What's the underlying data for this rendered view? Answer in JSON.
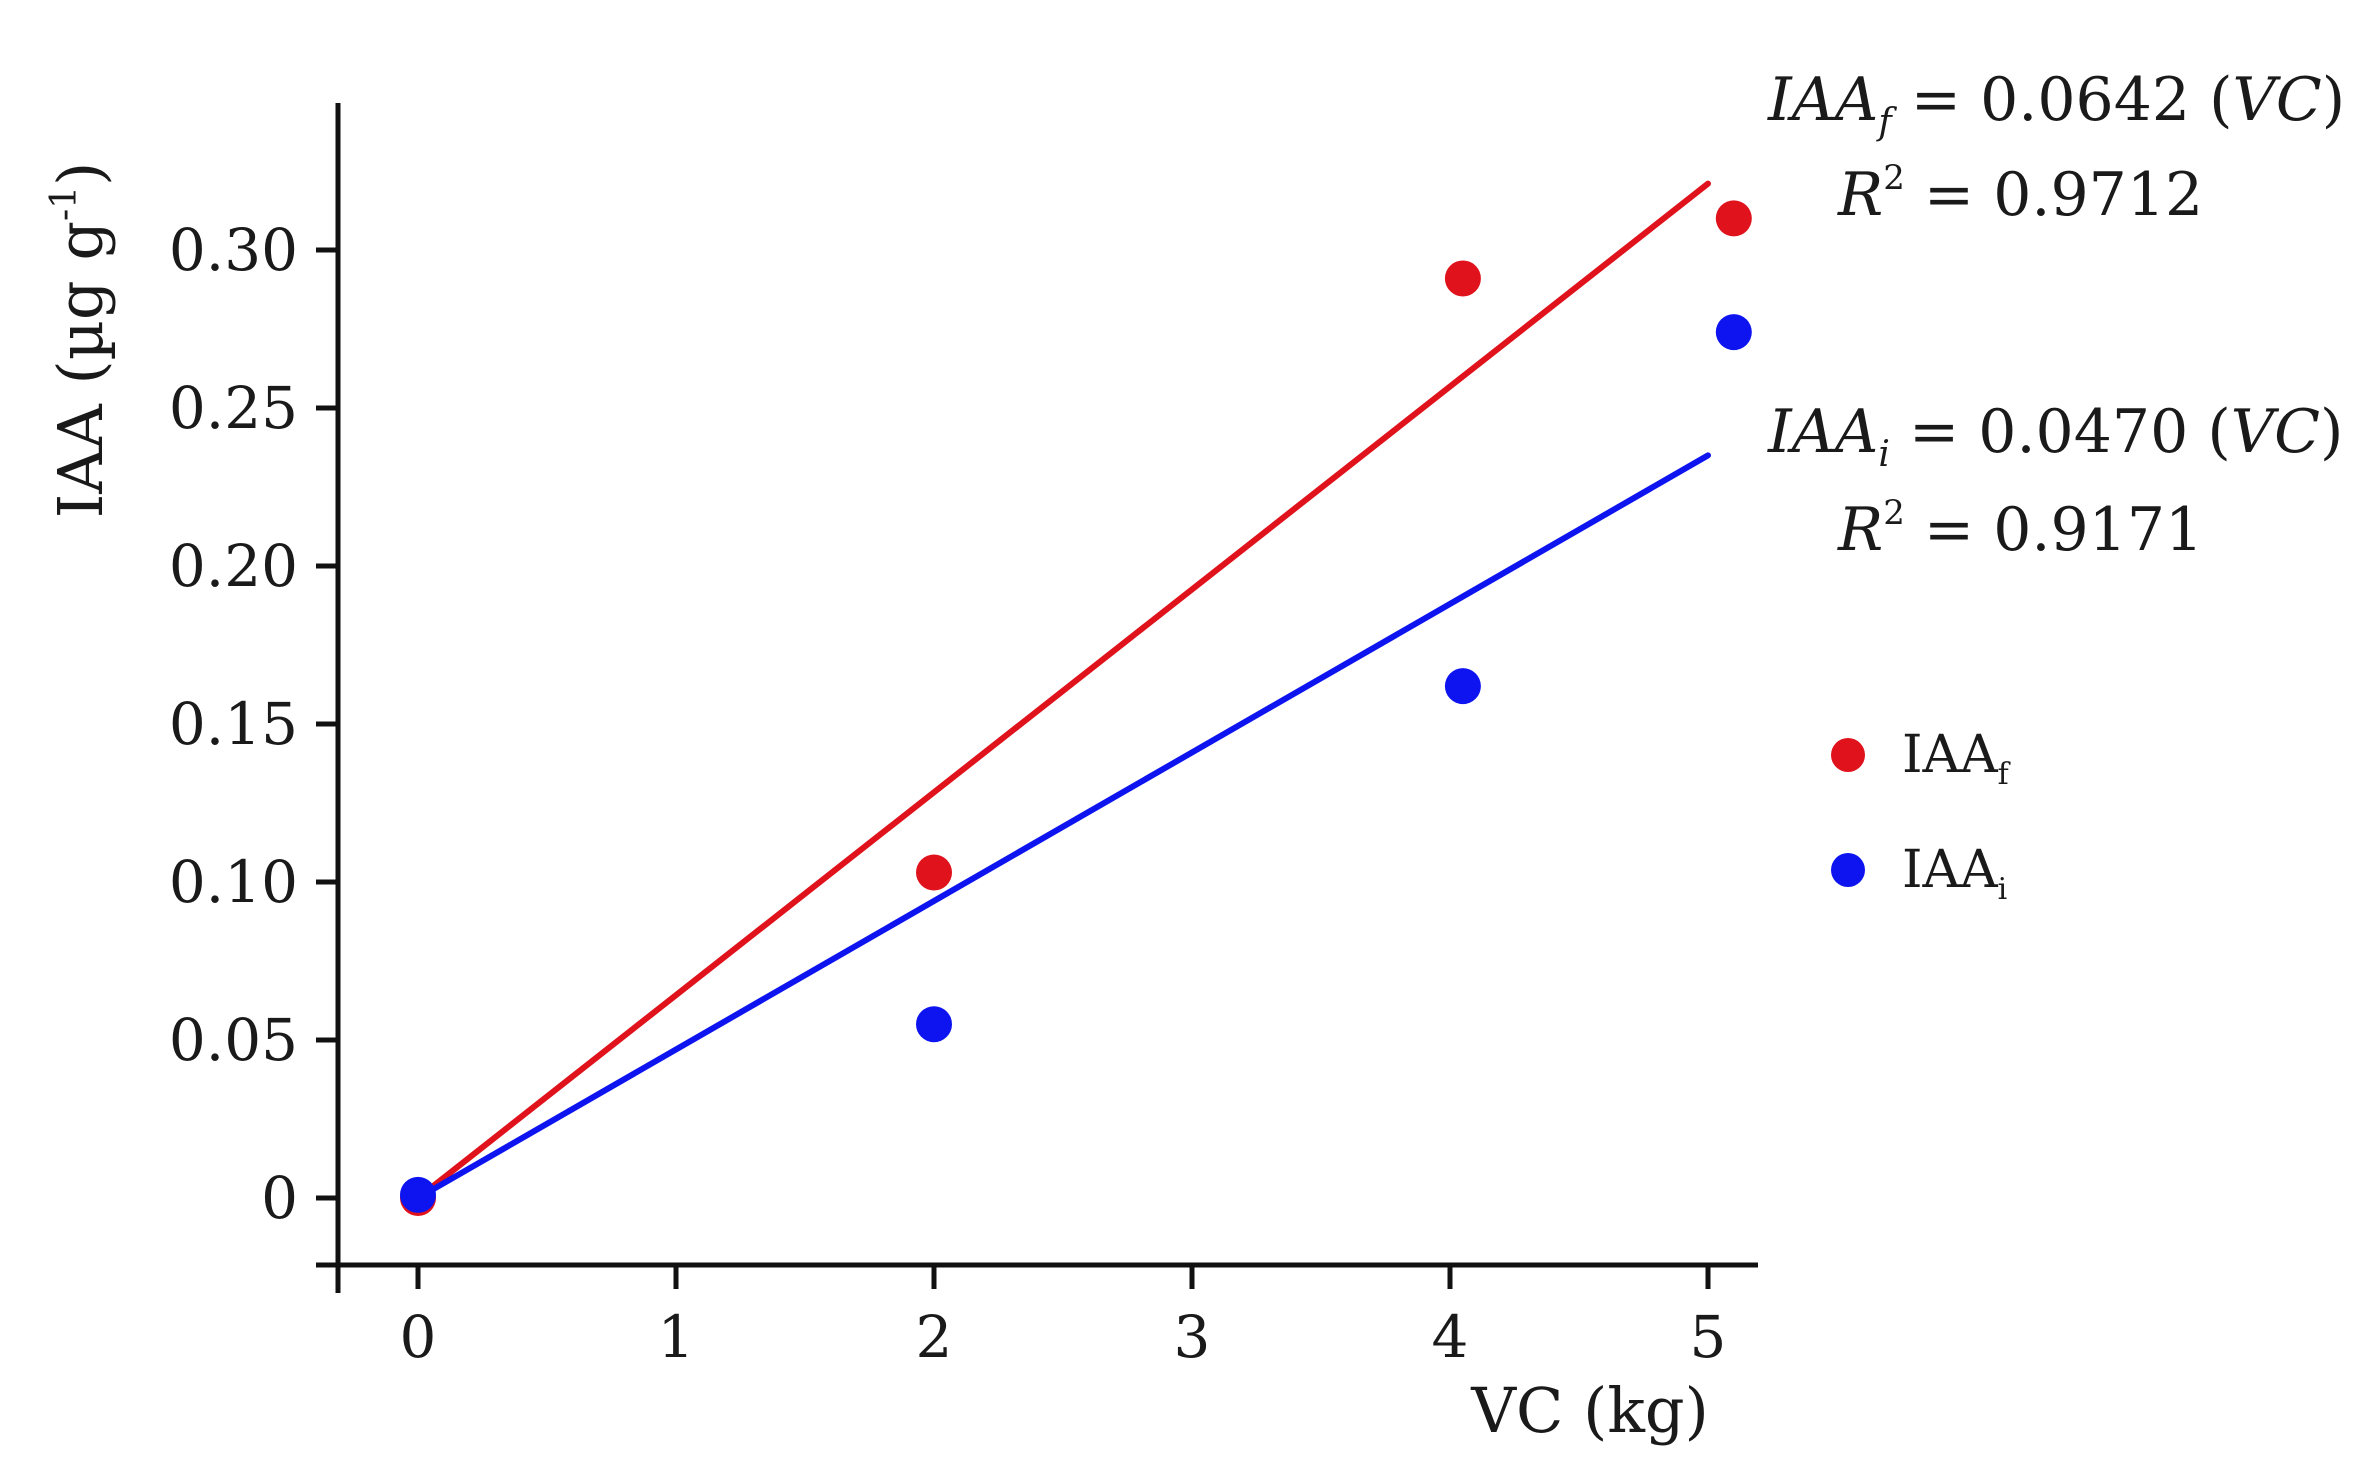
{
  "chart_data": {
    "type": "scatter",
    "xlabel": "VC (kg)",
    "ylabel": "IAA (µg g",
    "ylabel_sup": "-1",
    "ylabel_close": ")",
    "x_ticks": [
      0,
      1,
      2,
      3,
      4,
      5
    ],
    "x_tick_labels": [
      "0",
      "1",
      "2",
      "3",
      "4",
      "5"
    ],
    "y_ticks": [
      0,
      0.05,
      0.1,
      0.15,
      0.2,
      0.25,
      0.3
    ],
    "y_tick_labels": [
      "0",
      "0.05",
      "0.10",
      "0.15",
      "0.20",
      "0.25",
      "0.30"
    ],
    "xlim": [
      -0.3,
      5.2
    ],
    "ylim": [
      -0.02,
      0.35
    ],
    "grid": false,
    "legend_position": "right",
    "series": [
      {
        "key": "iaaf",
        "name": "IAA",
        "name_sub": "f",
        "color": "#e0121c",
        "points": [
          {
            "x": 0,
            "y": 0.0
          },
          {
            "x": 2,
            "y": 0.103
          },
          {
            "x": 4.05,
            "y": 0.291
          },
          {
            "x": 5.1,
            "y": 0.31
          }
        ],
        "fit": {
          "slope": 0.0642,
          "x_start": 0.05,
          "x_end": 5.0
        },
        "equation": {
          "lhs": "IAA",
          "lhs_sub": "f",
          "rhs": " = 0.0642 (",
          "var": "VC",
          "close": ")",
          "r2_label": "R",
          "r2_sup": "2",
          "r2_value": " = 0.9712"
        }
      },
      {
        "key": "iaai",
        "name": "IAA",
        "name_sub": "i",
        "color": "#0d14f0",
        "points": [
          {
            "x": 0,
            "y": 0.001
          },
          {
            "x": 2,
            "y": 0.055
          },
          {
            "x": 4.05,
            "y": 0.162
          },
          {
            "x": 5.1,
            "y": 0.274
          }
        ],
        "fit": {
          "slope": 0.047,
          "x_start": 0.05,
          "x_end": 5.0
        },
        "equation": {
          "lhs": "IAA",
          "lhs_sub": "i",
          "rhs": " = 0.0470 (",
          "var": "VC",
          "close": ")",
          "r2_label": "R",
          "r2_sup": "2",
          "r2_value": " = 0.9171"
        }
      }
    ]
  }
}
